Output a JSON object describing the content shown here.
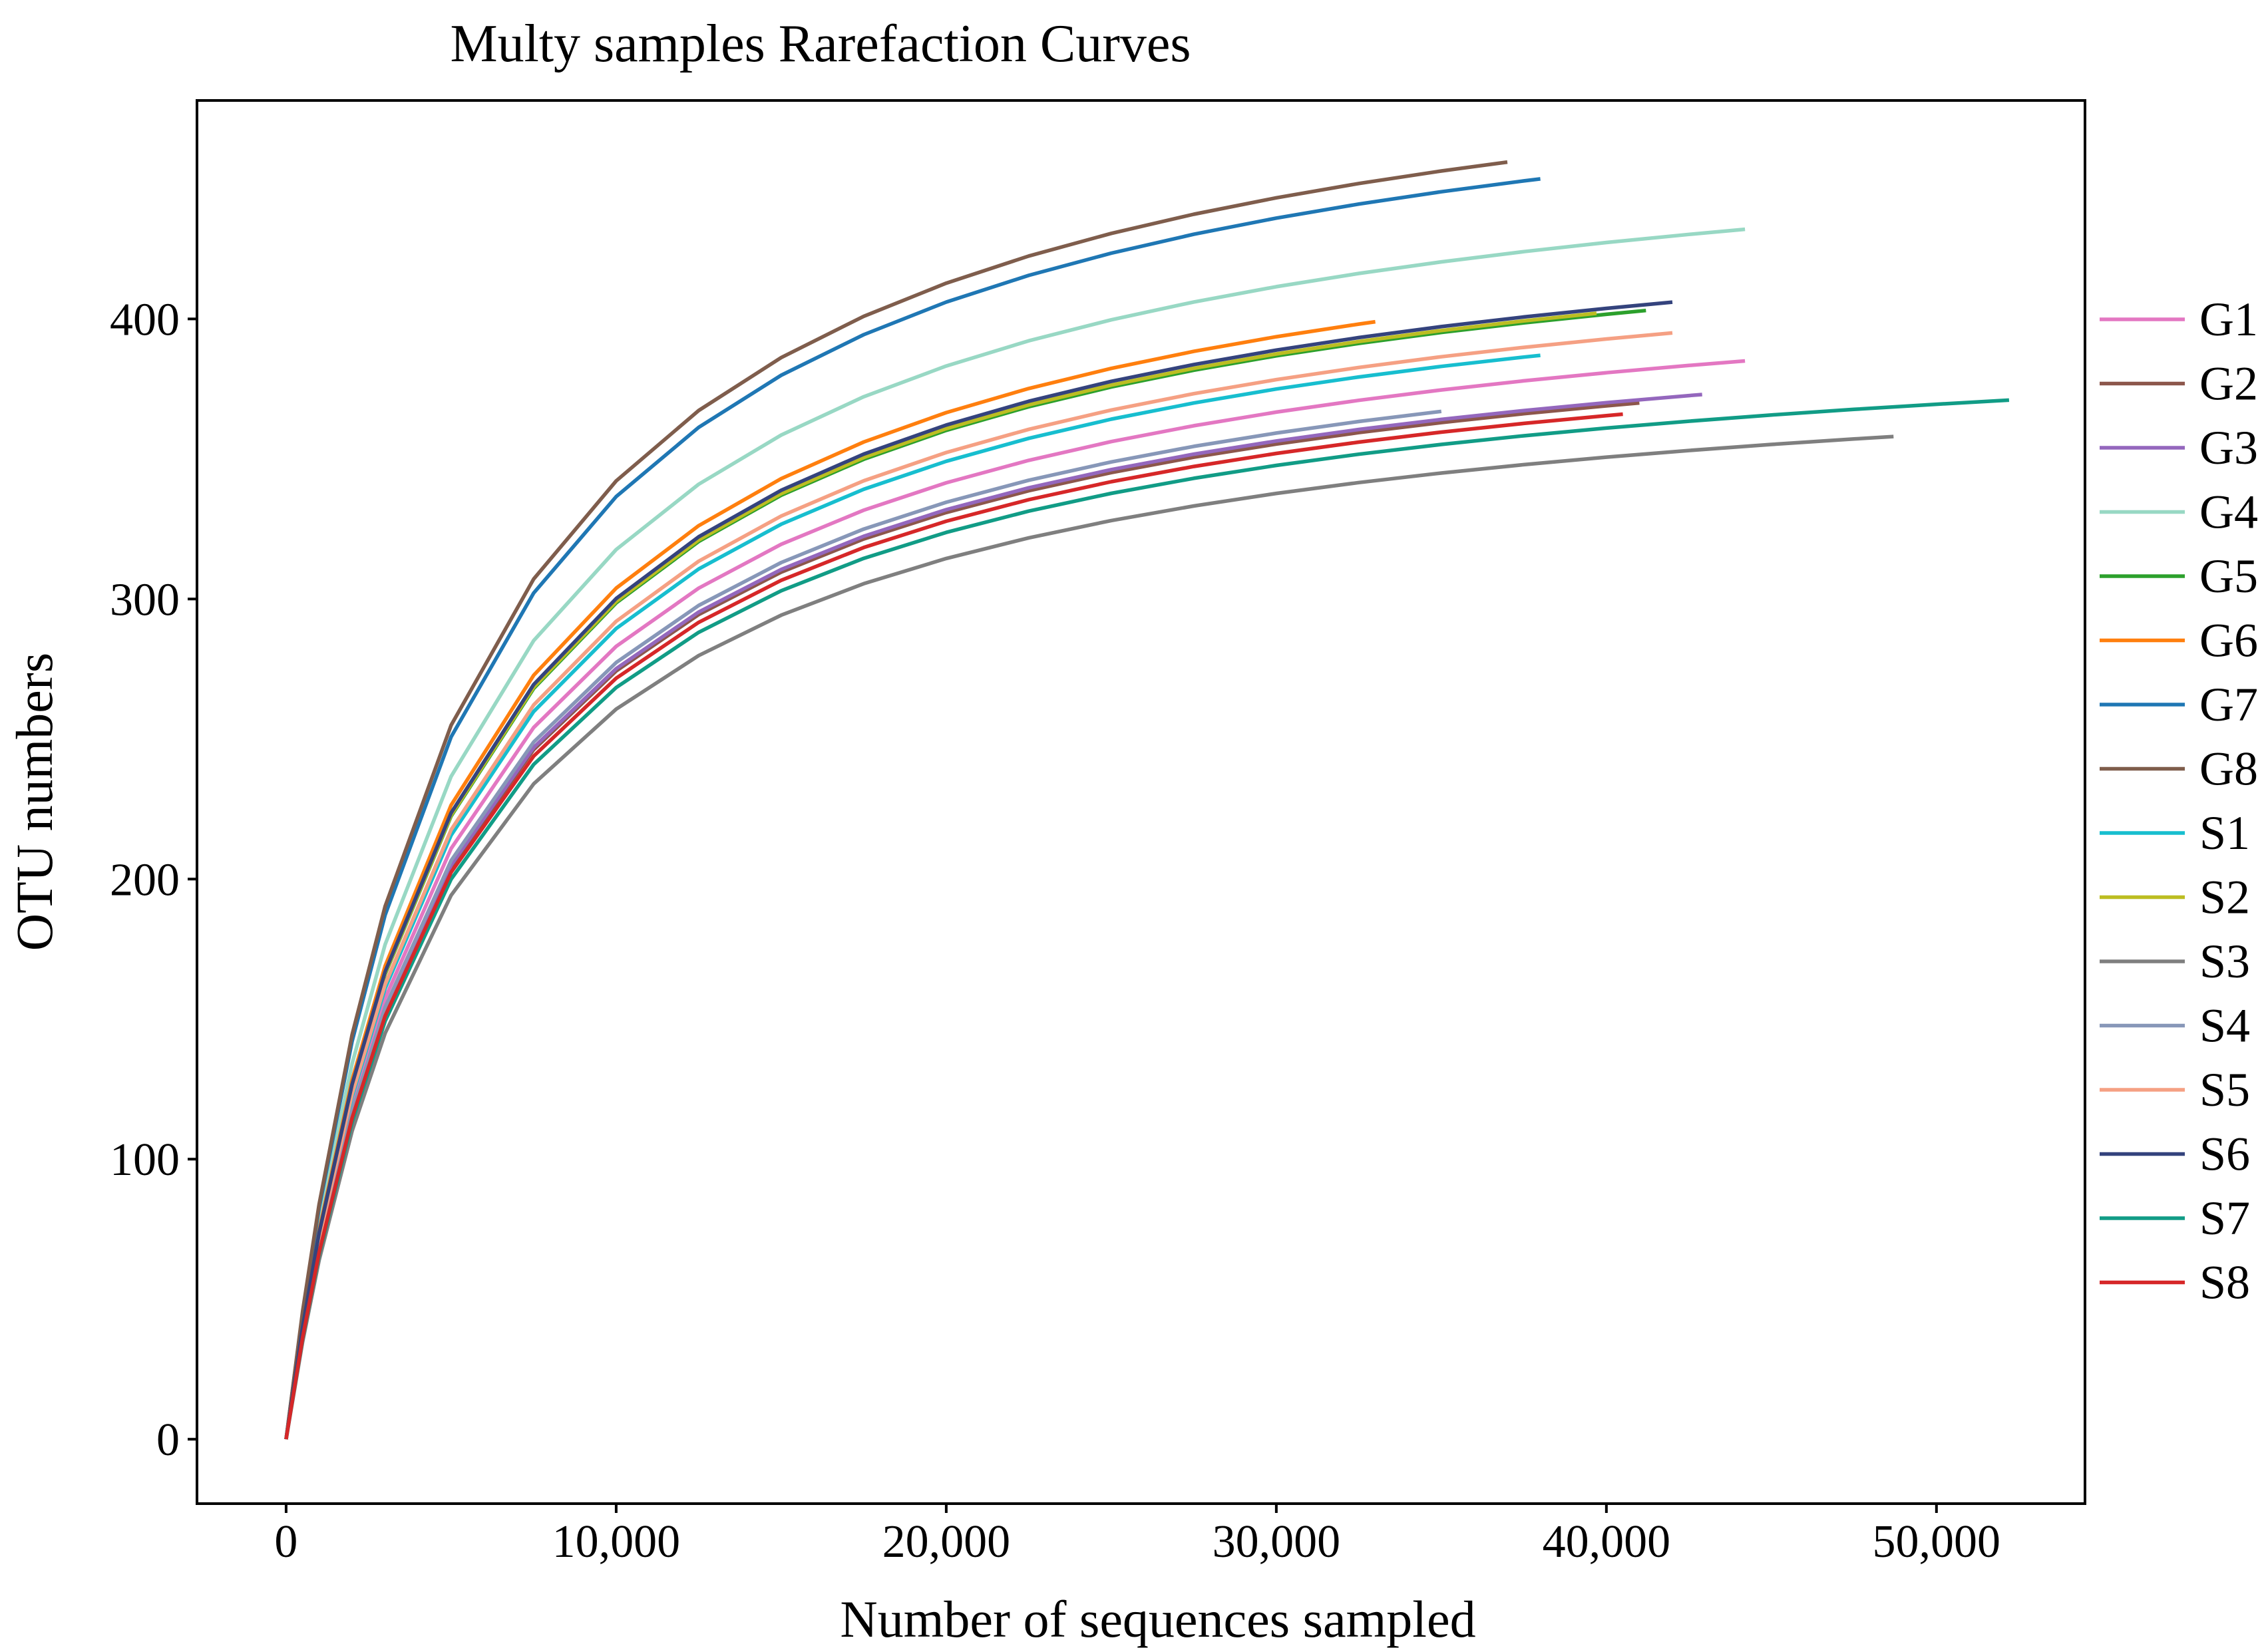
{
  "chart_data": {
    "type": "line",
    "title": "Multy samples Rarefaction Curves",
    "xlabel": "Number of sequences sampled",
    "ylabel": "OTU numbers",
    "xlim": [
      -2700,
      54500
    ],
    "ylim": [
      -23,
      478
    ],
    "x_ticks": [
      0,
      10000,
      20000,
      30000,
      40000,
      50000
    ],
    "x_tick_labels": [
      "0",
      "10,000",
      "20,000",
      "30,000",
      "40,000",
      "50,000"
    ],
    "y_ticks": [
      0,
      100,
      200,
      300,
      400
    ],
    "y_tick_labels": [
      "0",
      "100",
      "200",
      "300",
      "400"
    ],
    "grid": false,
    "legend_position": "outside-right",
    "x": [
      0,
      500,
      1000,
      2000,
      3000,
      5000,
      7500,
      10000,
      12500,
      15000,
      17500,
      20000,
      22500,
      25000,
      27500,
      30000,
      32500,
      35000,
      37500,
      40000,
      42500,
      45000,
      47500,
      50000,
      52200
    ],
    "series": [
      {
        "name": "G1",
        "color": "#e377c2",
        "max_x": 44200,
        "y_at_max": 385
      },
      {
        "name": "G2",
        "color": "#8c564b",
        "max_x": 41000,
        "y_at_max": 370
      },
      {
        "name": "G3",
        "color": "#9467bd",
        "max_x": 42900,
        "y_at_max": 373
      },
      {
        "name": "G4",
        "color": "#98d8c4",
        "max_x": 44200,
        "y_at_max": 432
      },
      {
        "name": "G5",
        "color": "#2ca02c",
        "max_x": 41200,
        "y_at_max": 403
      },
      {
        "name": "G6",
        "color": "#ff7f0e",
        "max_x": 33000,
        "y_at_max": 399
      },
      {
        "name": "G7",
        "color": "#1f77b4",
        "max_x": 38000,
        "y_at_max": 450
      },
      {
        "name": "G8",
        "color": "#7f5d4c",
        "max_x": 37000,
        "y_at_max": 456
      },
      {
        "name": "S1",
        "color": "#17becf",
        "max_x": 38000,
        "y_at_max": 387
      },
      {
        "name": "S2",
        "color": "#bcbd22",
        "max_x": 39700,
        "y_at_max": 402
      },
      {
        "name": "S3",
        "color": "#7f7f7f",
        "max_x": 48700,
        "y_at_max": 358
      },
      {
        "name": "S4",
        "color": "#8797b8",
        "max_x": 35000,
        "y_at_max": 367
      },
      {
        "name": "S5",
        "color": "#f5a083",
        "max_x": 42000,
        "y_at_max": 395
      },
      {
        "name": "S6",
        "color": "#34437d",
        "max_x": 42000,
        "y_at_max": 406
      },
      {
        "name": "S7",
        "color": "#119c86",
        "max_x": 52200,
        "y_at_max": 371
      },
      {
        "name": "S8",
        "color": "#d62728",
        "max_x": 40500,
        "y_at_max": 366
      }
    ]
  }
}
